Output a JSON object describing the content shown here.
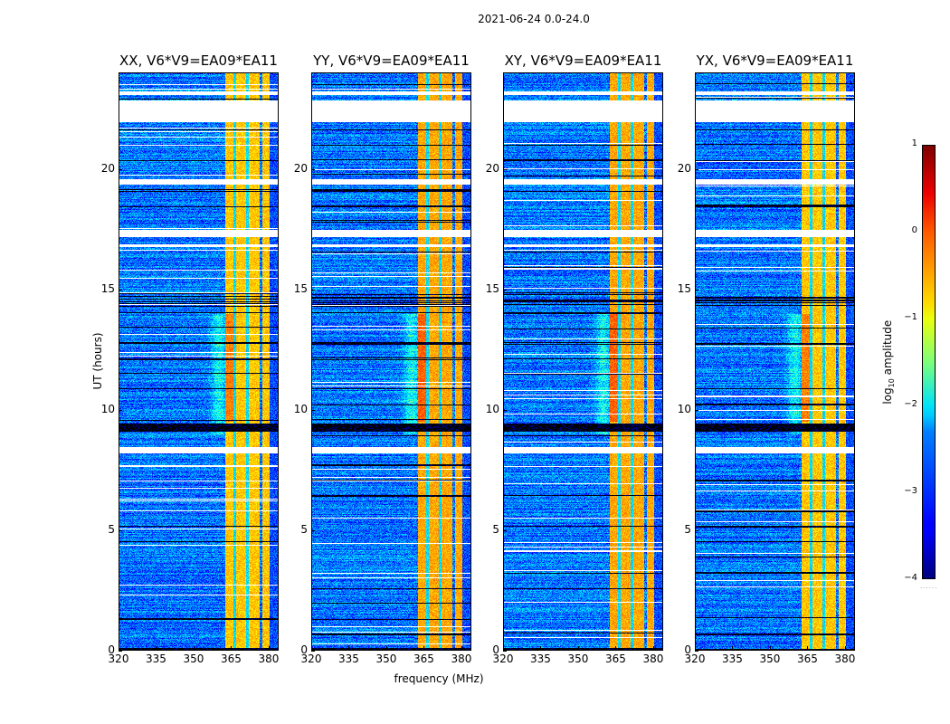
{
  "suptitle": "2021-06-24 0.0-24.0",
  "xlabel": "frequency (MHz)",
  "ylabel": "UT (hours)",
  "colorbar": {
    "label_prefix": "log",
    "label_sub": "10",
    "label_suffix": " amplitude",
    "range": [
      -4,
      1
    ],
    "ticks": [
      "1",
      "0",
      "−1",
      "−2",
      "−3",
      "−4"
    ],
    "tick_values": [
      1,
      0,
      -1,
      -2,
      -3,
      -4
    ],
    "colormap": "jet",
    "dots": "......"
  },
  "chart_data": {
    "type": "heatmap",
    "title": "2021-06-24 0.0-24.0",
    "xlabel": "frequency (MHz)",
    "ylabel": "UT (hours)",
    "xlim": [
      320,
      384
    ],
    "ylim": [
      0,
      24
    ],
    "xticks": [
      "320",
      "335",
      "350",
      "365",
      "380"
    ],
    "xtick_values": [
      320,
      335,
      350,
      365,
      380
    ],
    "yticks": [
      "0",
      "5",
      "10",
      "15",
      "20"
    ],
    "ytick_values": [
      0,
      5,
      10,
      15,
      20
    ],
    "zlabel": "log10 amplitude",
    "zlim": [
      -4,
      1
    ],
    "panels": [
      {
        "title": "XX, V6*V9=EA09*EA11",
        "polarization": "XX",
        "baseline": "V6*V9=EA09*EA11"
      },
      {
        "title": "YY, V6*V9=EA09*EA11",
        "polarization": "YY",
        "baseline": "V6*V9=EA09*EA11"
      },
      {
        "title": "XY, V6*V9=EA09*EA11",
        "polarization": "XY",
        "baseline": "V6*V9=EA09*EA11"
      },
      {
        "title": "YX, V6*V9=EA09*EA11",
        "polarization": "YX",
        "baseline": "V6*V9=EA09*EA11"
      }
    ],
    "strong_band_mhz": [
      [
        362.5,
        376.5
      ],
      [
        377.5,
        380.5
      ]
    ],
    "band_level_log10": -0.6,
    "background_level_log10": -2.8,
    "flagged_gaps_ut": [
      [
        22.0,
        22.9
      ],
      [
        19.4,
        19.6
      ],
      [
        17.2,
        17.5
      ],
      [
        16.8,
        16.9
      ],
      [
        8.2,
        8.45
      ],
      [
        23.1,
        23.25
      ]
    ]
  }
}
